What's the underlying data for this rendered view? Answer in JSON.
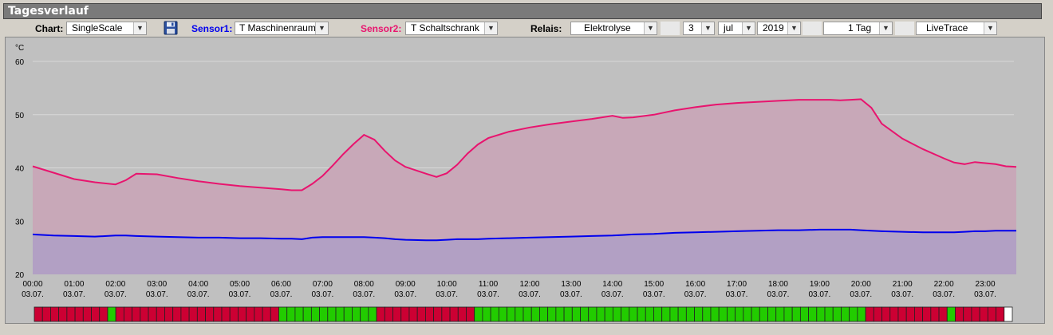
{
  "title": "Tagesverlauf",
  "toolbar": {
    "chart_label": "Chart:",
    "chart_value": "SingleScale",
    "sensor1_label": "Sensor1:",
    "sensor1_value": "T Maschinenraum",
    "sensor2_label": "Sensor2:",
    "sensor2_value": "T Schaltschrank",
    "relais_label": "Relais:",
    "relais_value": "Elektrolyse",
    "day_value": "3",
    "month_value": "jul",
    "year_value": "2019",
    "range_value": "1 Tag",
    "mode_value": "LiveTrace"
  },
  "colors": {
    "sensor1": "#0000ee",
    "sensor2": "#e8146e",
    "relay_on": "#22cc00",
    "relay_off": "#cc0033"
  },
  "chart_data": {
    "type": "area",
    "ylabel": "°C",
    "ylim": [
      20,
      60
    ],
    "yticks": [
      20,
      30,
      40,
      50,
      60
    ],
    "x_hours": [
      0,
      0.5,
      1,
      1.5,
      2,
      2.25,
      2.5,
      3,
      3.5,
      4,
      4.5,
      5,
      5.5,
      6,
      6.25,
      6.5,
      6.75,
      7,
      7.25,
      7.5,
      7.75,
      8,
      8.25,
      8.5,
      8.75,
      9,
      9.5,
      9.75,
      10,
      10.25,
      10.5,
      10.75,
      11,
      11.5,
      12,
      12.5,
      13,
      13.5,
      14,
      14.25,
      14.5,
      15,
      15.5,
      16,
      16.5,
      17,
      17.5,
      18,
      18.5,
      19,
      19.25,
      19.5,
      19.75,
      20,
      20.25,
      20.5,
      21,
      21.5,
      22,
      22.25,
      22.5,
      22.75,
      23,
      23.25,
      23.5,
      23.75
    ],
    "xticks": [
      {
        "time": "00:00",
        "date": "03.07."
      },
      {
        "time": "01:00",
        "date": "03.07."
      },
      {
        "time": "02:00",
        "date": "03.07."
      },
      {
        "time": "03:00",
        "date": "03.07."
      },
      {
        "time": "04:00",
        "date": "03.07."
      },
      {
        "time": "05:00",
        "date": "03.07."
      },
      {
        "time": "06:00",
        "date": "03.07."
      },
      {
        "time": "07:00",
        "date": "03.07."
      },
      {
        "time": "08:00",
        "date": "03.07."
      },
      {
        "time": "09:00",
        "date": "03.07."
      },
      {
        "time": "10:00",
        "date": "03.07."
      },
      {
        "time": "11:00",
        "date": "03.07."
      },
      {
        "time": "12:00",
        "date": "03.07."
      },
      {
        "time": "13:00",
        "date": "03.07."
      },
      {
        "time": "14:00",
        "date": "03.07."
      },
      {
        "time": "15:00",
        "date": "03.07."
      },
      {
        "time": "16:00",
        "date": "03.07."
      },
      {
        "time": "17:00",
        "date": "03.07."
      },
      {
        "time": "18:00",
        "date": "03.07."
      },
      {
        "time": "19:00",
        "date": "03.07."
      },
      {
        "time": "20:00",
        "date": "03.07."
      },
      {
        "time": "21:00",
        "date": "03.07."
      },
      {
        "time": "22:00",
        "date": "03.07."
      },
      {
        "time": "23:00",
        "date": "03.07."
      }
    ],
    "series": [
      {
        "key": "sensor2",
        "values": [
          40.3,
          39.1,
          37.9,
          37.3,
          36.9,
          37.7,
          38.9,
          38.8,
          38.1,
          37.5,
          37.0,
          36.6,
          36.3,
          36.0,
          35.8,
          35.8,
          37.0,
          38.5,
          40.5,
          42.6,
          44.5,
          46.2,
          45.3,
          43.2,
          41.4,
          40.2,
          38.9,
          38.3,
          39.0,
          40.6,
          42.7,
          44.4,
          45.6,
          46.8,
          47.6,
          48.2,
          48.7,
          49.2,
          49.8,
          49.4,
          49.5,
          50.0,
          50.8,
          51.4,
          51.9,
          52.2,
          52.4,
          52.6,
          52.8,
          52.8,
          52.8,
          52.7,
          52.8,
          52.9,
          51.3,
          48.3,
          45.5,
          43.5,
          41.8,
          41.0,
          40.7,
          41.1,
          40.9,
          40.7,
          40.3,
          40.2
        ]
      },
      {
        "key": "sensor1",
        "values": [
          27.5,
          27.3,
          27.2,
          27.1,
          27.3,
          27.3,
          27.2,
          27.1,
          27.0,
          26.9,
          26.9,
          26.8,
          26.8,
          26.7,
          26.7,
          26.6,
          26.9,
          27.0,
          27.0,
          27.0,
          27.0,
          27.0,
          26.9,
          26.8,
          26.6,
          26.5,
          26.4,
          26.4,
          26.5,
          26.6,
          26.6,
          26.6,
          26.7,
          26.8,
          26.9,
          27.0,
          27.1,
          27.2,
          27.3,
          27.4,
          27.5,
          27.6,
          27.8,
          27.9,
          28.0,
          28.1,
          28.2,
          28.3,
          28.3,
          28.4,
          28.4,
          28.4,
          28.4,
          28.3,
          28.2,
          28.1,
          28.0,
          27.9,
          27.9,
          27.9,
          28.0,
          28.1,
          28.1,
          28.2,
          28.2,
          28.2
        ]
      }
    ]
  },
  "relay_states": "RRRRRRRRRGRRRRRRRRRRRRRRRRRRRRGGGGGGGGGGGGRRRRRRRRRRRRGGGGGGGGGGGGGGGGGGGGGGGGGGGGGGGGGGGGGGGGGGGGGGGGRRRRRRRRRRGRRRRRRW"
}
